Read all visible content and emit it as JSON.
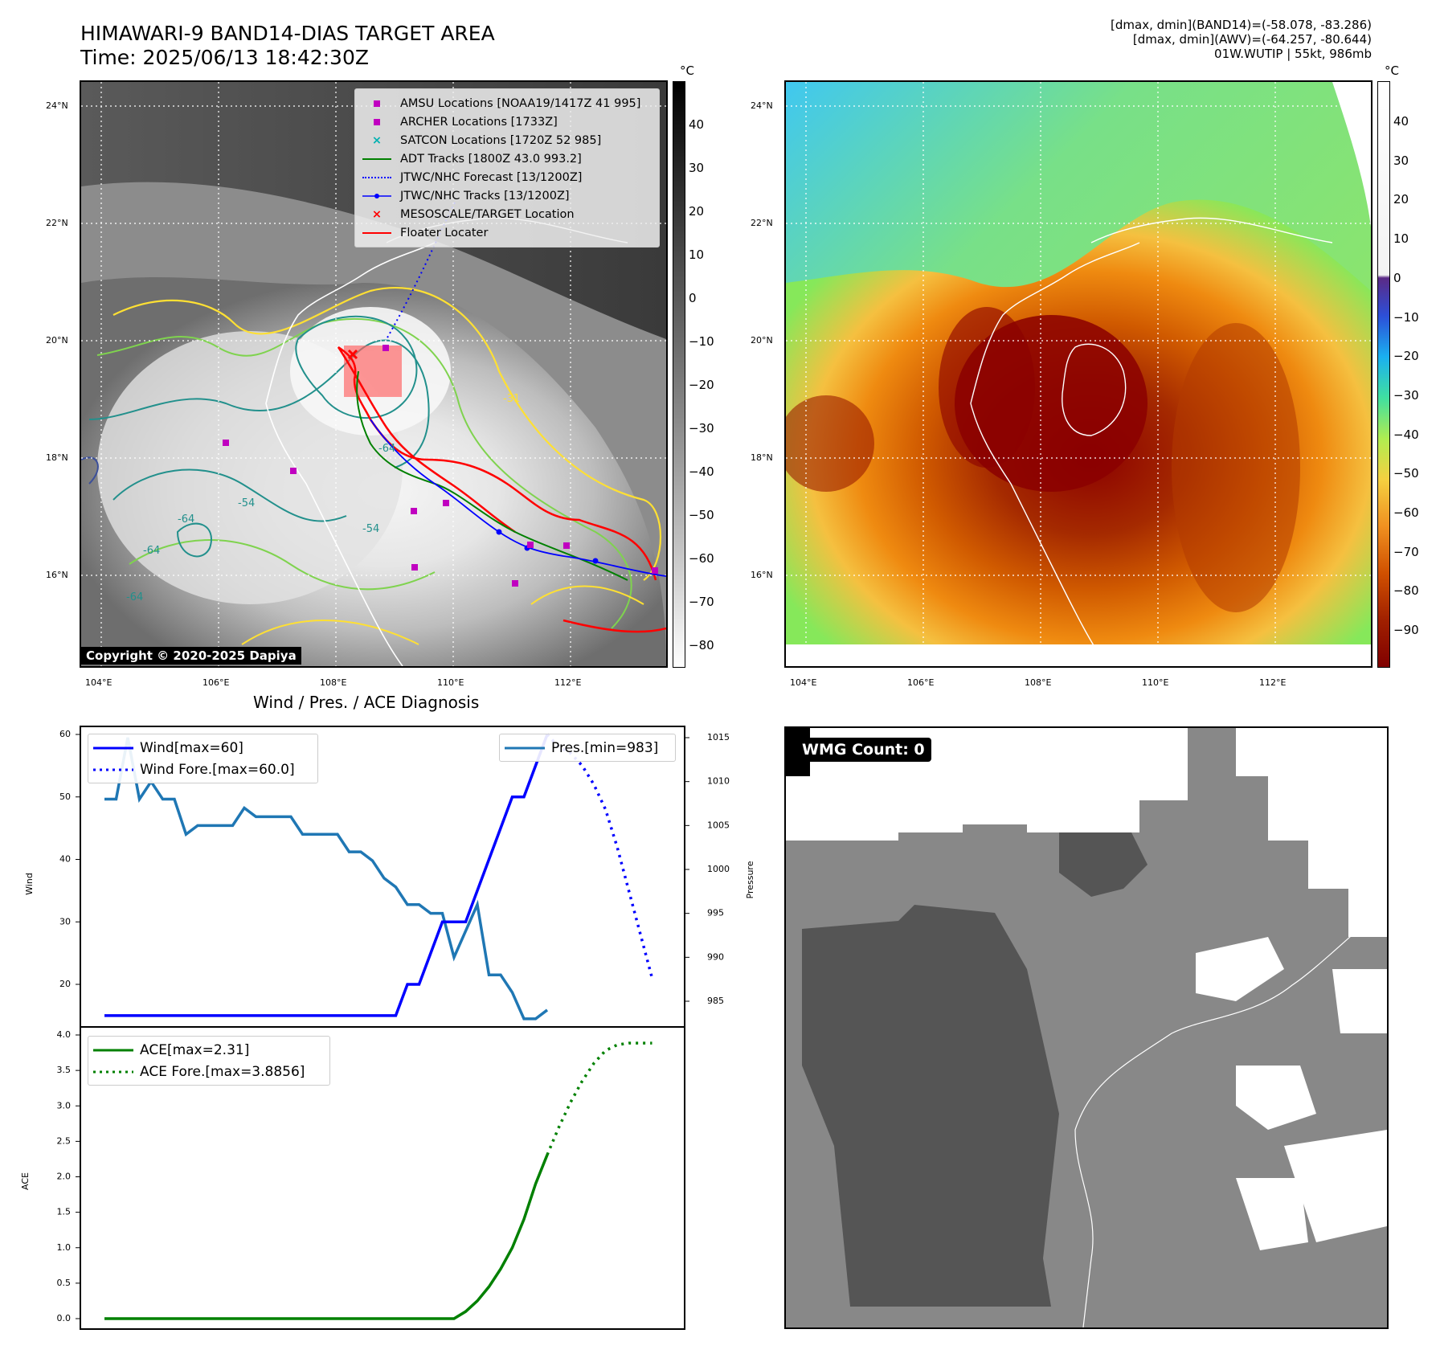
{
  "header": {
    "title_line1": "HIMAWARI-9 BAND14-DIAS TARGET AREA",
    "title_line2": "Time: 2025/06/13 18:42:30Z",
    "info_line1": "[dmax, dmin](BAND14)=(-58.078, -83.286)",
    "info_line2": "[dmax, dmin](AWV)=(-64.257, -80.644)",
    "info_line3": "01W.WUTIP | 55kt, 986mb"
  },
  "map_axes": {
    "lat_labels": [
      "24°N",
      "22°N",
      "20°N",
      "18°N",
      "16°N"
    ],
    "lon_labels": [
      "104°E",
      "106°E",
      "108°E",
      "110°E",
      "112°E"
    ]
  },
  "ir_map": {
    "legend": [
      {
        "label": "AMSU Locations [NOAA19/1417Z 41 995]",
        "symbol": "square",
        "color": "#c000c0"
      },
      {
        "label": "ARCHER Locations [1733Z]",
        "symbol": "square",
        "color": "#c000c0"
      },
      {
        "label": "SATCON Locations [1720Z 52 985]",
        "symbol": "x",
        "color": "#00b0b0"
      },
      {
        "label": "ADT Tracks [1800Z 43.0 993.2]",
        "symbol": "line",
        "color": "#008000"
      },
      {
        "label": "JTWC/NHC Forecast [13/1200Z]",
        "symbol": "dotted",
        "color": "#0000ff"
      },
      {
        "label": "JTWC/NHC Tracks [13/1200Z]",
        "symbol": "line-dot",
        "color": "#0000ff"
      },
      {
        "label": "MESOSCALE/TARGET Location",
        "symbol": "x",
        "color": "#ff0000"
      },
      {
        "label": "Floater Locater",
        "symbol": "line",
        "color": "#ff0000"
      }
    ],
    "contour_labels": [
      "-64",
      "-54",
      "-64",
      "-64",
      "-64",
      "-31",
      "-54"
    ],
    "copyright": "Copyright © 2020-2025 Dapiya",
    "colorbar_unit": "°C",
    "colorbar_ticks": [
      "40",
      "30",
      "20",
      "10",
      "0",
      "−10",
      "−20",
      "−30",
      "−40",
      "−50",
      "−60",
      "−70",
      "−80"
    ]
  },
  "awv_map": {
    "colorbar_unit": "°C",
    "colorbar_ticks": [
      "40",
      "30",
      "20",
      "10",
      "0",
      "−10",
      "−20",
      "−30",
      "−40",
      "−50",
      "−60",
      "−70",
      "−80",
      "−90"
    ]
  },
  "diagnosis": {
    "title": "Wind / Pres. / ACE Diagnosis",
    "wind_ylabel": "Wind",
    "pressure_ylabel": "Pressure",
    "ace_ylabel": "ACE",
    "wind_legend": [
      "Wind[max=60]",
      "Wind Fore.[max=60.0]"
    ],
    "pressure_legend": "Pres.[min=983]",
    "ace_legend": [
      "ACE[max=2.31]",
      "ACE Fore.[max=3.8856]"
    ],
    "wind_ticks": [
      "60",
      "50",
      "40",
      "30",
      "20"
    ],
    "pressure_ticks": [
      "1015",
      "1010",
      "1005",
      "1000",
      "995",
      "990",
      "985"
    ],
    "ace_ticks": [
      "4.0",
      "3.5",
      "3.0",
      "2.5",
      "2.0",
      "1.5",
      "1.0",
      "0.5",
      "0.0"
    ]
  },
  "wmg": {
    "label": "WMG Count: 0"
  },
  "chart_data": [
    {
      "type": "line",
      "ylabel": "Wind",
      "ylim": [
        15,
        62
      ],
      "series": [
        {
          "name": "Wind[max=60]",
          "color": "#0000ff",
          "style": "solid",
          "x": [
            0,
            1,
            2,
            3,
            4,
            5,
            6,
            7,
            8,
            9,
            10,
            11,
            12,
            13,
            14,
            15,
            16,
            17,
            18,
            19,
            20,
            21,
            22,
            23,
            24,
            25,
            26,
            27,
            28,
            29,
            30,
            31,
            32,
            33,
            34,
            35,
            36,
            37,
            38
          ],
          "values": [
            15,
            15,
            15,
            15,
            15,
            15,
            15,
            15,
            15,
            15,
            15,
            15,
            15,
            15,
            15,
            15,
            15,
            15,
            15,
            15,
            15,
            15,
            15,
            15,
            15,
            15,
            20,
            20,
            25,
            30,
            30,
            30,
            35,
            40,
            45,
            50,
            50,
            55,
            60
          ]
        },
        {
          "name": "Wind Fore.[max=60.0]",
          "color": "#0000ff",
          "style": "dotted",
          "x": [
            38,
            39,
            40,
            41,
            42,
            43,
            44,
            45,
            46,
            47
          ],
          "values": [
            60,
            58,
            57,
            55,
            52,
            48,
            42,
            35,
            28,
            21
          ]
        }
      ]
    },
    {
      "type": "line",
      "ylabel": "Pressure",
      "ylim": [
        982,
        1015.5
      ],
      "series": [
        {
          "name": "Pres.[min=983]",
          "color": "#1f77b4",
          "style": "solid",
          "x": [
            0,
            1,
            2,
            3,
            4,
            5,
            6,
            7,
            8,
            9,
            10,
            11,
            12,
            13,
            14,
            15,
            16,
            17,
            18,
            19,
            20,
            21,
            22,
            23,
            24,
            25,
            26,
            27,
            28,
            29,
            30,
            31,
            32,
            33,
            34,
            35,
            36,
            37,
            38
          ],
          "values": [
            1008,
            1008,
            1015,
            1008,
            1010,
            1008,
            1008,
            1004,
            1005,
            1005,
            1005,
            1005,
            1007,
            1006,
            1006,
            1006,
            1006,
            1004,
            1004,
            1004,
            1004,
            1002,
            1002,
            1001,
            999,
            998,
            996,
            996,
            995,
            995,
            990,
            993,
            996,
            988,
            988,
            986,
            983,
            983,
            984
          ]
        }
      ]
    },
    {
      "type": "line",
      "ylabel": "ACE",
      "ylim": [
        0,
        4.0
      ],
      "series": [
        {
          "name": "ACE[max=2.31]",
          "color": "#008000",
          "style": "solid",
          "x": [
            0,
            5,
            10,
            15,
            20,
            25,
            30,
            31,
            32,
            33,
            34,
            35,
            36,
            37,
            38
          ],
          "values": [
            0,
            0,
            0,
            0,
            0,
            0,
            0,
            0.1,
            0.25,
            0.45,
            0.7,
            1.0,
            1.4,
            1.9,
            2.31
          ]
        },
        {
          "name": "ACE Fore.[max=3.8856]",
          "color": "#008000",
          "style": "dotted",
          "x": [
            38,
            39,
            40,
            41,
            42,
            43,
            44,
            45,
            46,
            47
          ],
          "values": [
            2.31,
            2.7,
            3.05,
            3.35,
            3.6,
            3.78,
            3.86,
            3.8856,
            3.8856,
            3.8856
          ]
        }
      ]
    }
  ]
}
